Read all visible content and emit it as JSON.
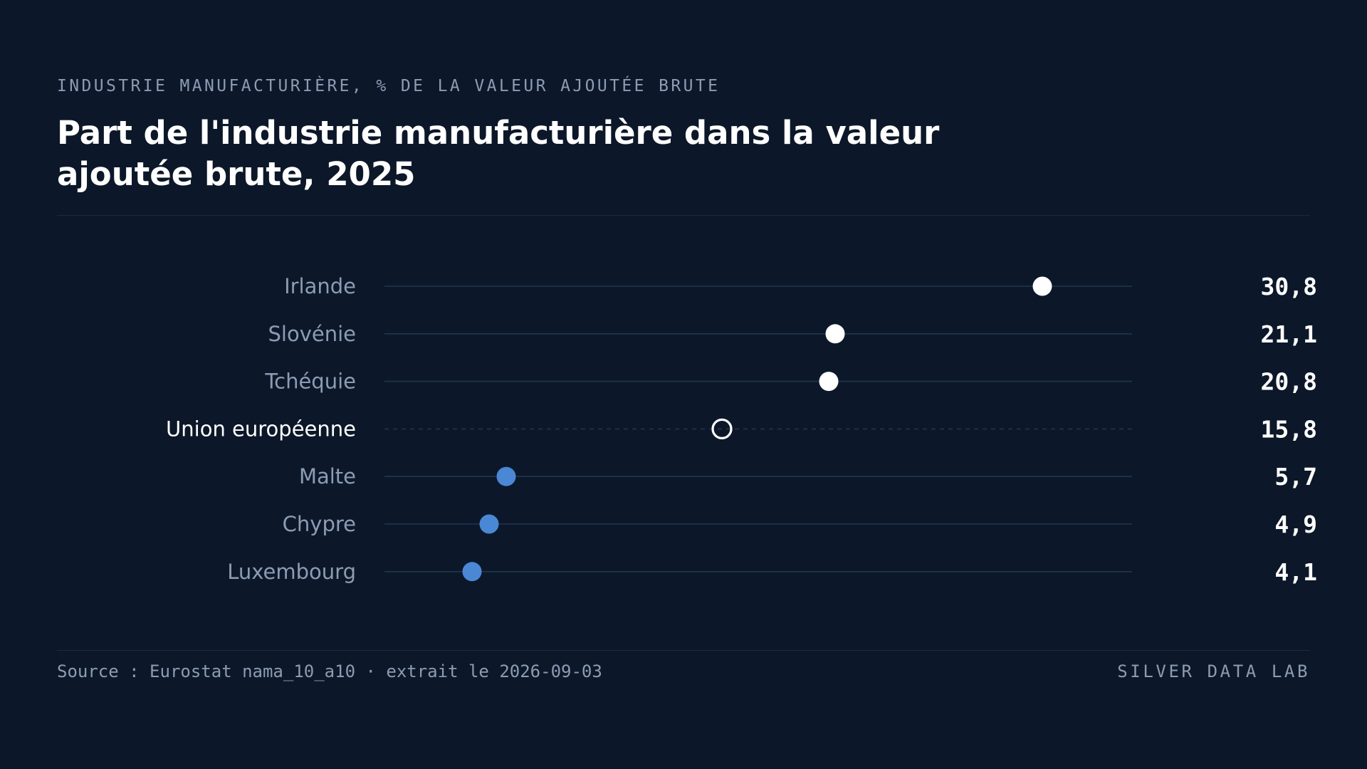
{
  "header": {
    "kicker": "INDUSTRIE MANUFACTURIÈRE, % DE LA VALEUR AJOUTÉE BRUTE",
    "title": "Part de l'industrie manufacturière dans la valeur ajoutée brute, 2025"
  },
  "footer": {
    "source": "Source : Eurostat nama_10_a10 · extrait le 2026-09-03",
    "brand": "SILVER DATA LAB"
  },
  "colors": {
    "background": "#0c1829",
    "high_dot": "#ffffff",
    "low_dot": "#4a88d6",
    "reference_dot": "#ffffff",
    "track": "#1f3550",
    "label_text": "#8c9cb4",
    "reference_label_text": "#ffffff"
  },
  "chart_data": {
    "type": "dot",
    "title": "Part de l'industrie manufacturière dans la valeur ajoutée brute, 2025",
    "unit": "% de la valeur ajoutée brute",
    "xlim": [
      0,
      35
    ],
    "grid": false,
    "legend": "none",
    "rows": [
      {
        "label": "Irlande",
        "value": 30.8,
        "display": "30,8",
        "group": "high"
      },
      {
        "label": "Slovénie",
        "value": 21.1,
        "display": "21,1",
        "group": "high"
      },
      {
        "label": "Tchéquie",
        "value": 20.8,
        "display": "20,8",
        "group": "high"
      },
      {
        "label": "Union européenne",
        "value": 15.8,
        "display": "15,8",
        "group": "reference"
      },
      {
        "label": "Malte",
        "value": 5.7,
        "display": "5,7",
        "group": "low"
      },
      {
        "label": "Chypre",
        "value": 4.9,
        "display": "4,9",
        "group": "low"
      },
      {
        "label": "Luxembourg",
        "value": 4.1,
        "display": "4,1",
        "group": "low"
      }
    ]
  }
}
